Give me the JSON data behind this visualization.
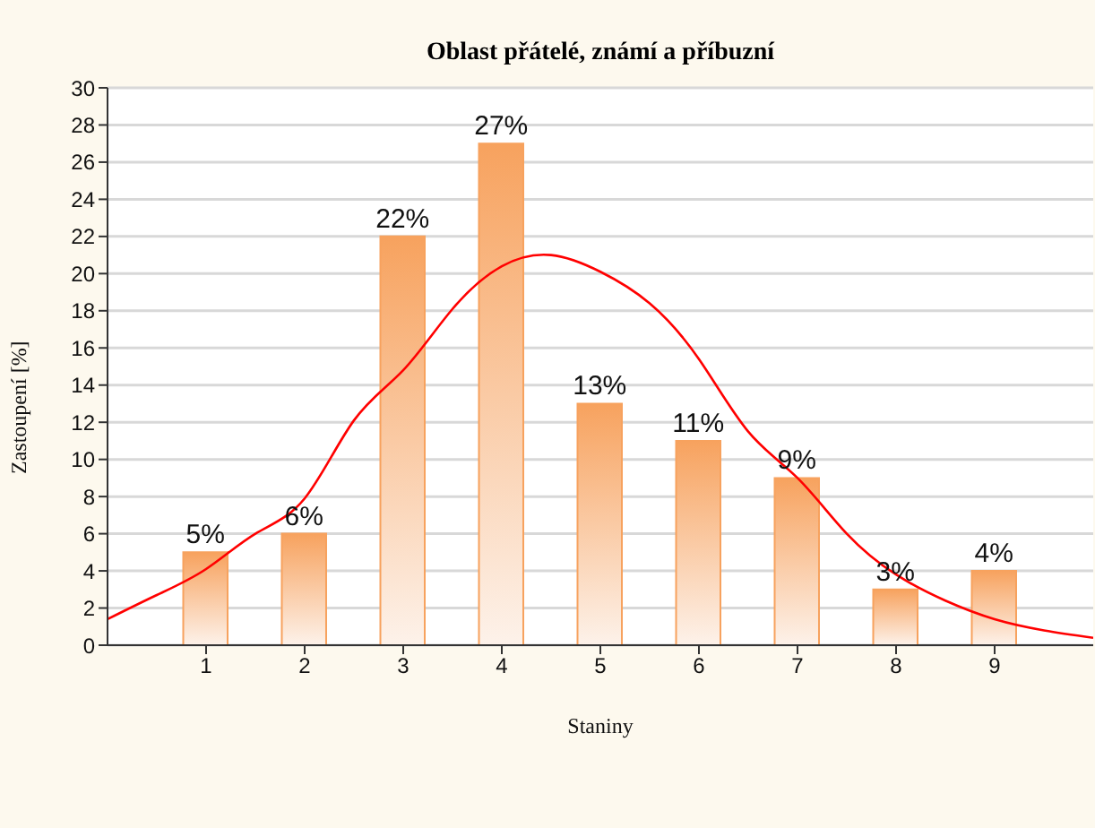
{
  "chart_data": {
    "type": "histogram",
    "title": "Oblast přátelé, známí a příbuzní",
    "xlabel": "Staniny",
    "ylabel": "Zastoupení [%]",
    "bins": [
      0.5,
      1.5,
      2.5,
      3.5,
      4.5,
      5.5,
      6.5,
      7.5,
      8.5,
      9.5
    ],
    "values": [
      5,
      6,
      22,
      27,
      13,
      11,
      9,
      3,
      4
    ],
    "value_labels": [
      "5%",
      "6%",
      "22%",
      "27%",
      "13%",
      "11%",
      "9%",
      "3%",
      "4%"
    ],
    "color": "#f7a25e",
    "series": [
      {
        "type": "line",
        "color": "#ff0000",
        "x": [
          0,
          0.5,
          1,
          1.5,
          2,
          2.5,
          3,
          3.5,
          4,
          4.5,
          5,
          5.5,
          6,
          6.5,
          7,
          7.5,
          8,
          8.5,
          9,
          9.5,
          10
        ],
        "values": [
          1.4,
          2.7,
          4.1,
          6.0,
          7.9,
          12.1,
          14.8,
          18.1,
          20.4,
          21.0,
          20.1,
          18.4,
          15.4,
          11.5,
          9.0,
          6.0,
          3.8,
          2.4,
          1.4,
          0.8,
          0.4
        ]
      }
    ],
    "xlim": [
      0,
      10
    ],
    "xticks": [
      1,
      2,
      3,
      4,
      5,
      6,
      7,
      8,
      9
    ],
    "ylim": [
      0,
      30
    ],
    "yticks": [
      0,
      2,
      4,
      6,
      8,
      10,
      12,
      14,
      16,
      18,
      20,
      22,
      24,
      26,
      28,
      30
    ],
    "grid": "y",
    "legend": false,
    "marker": "none",
    "line_style": "solid"
  }
}
